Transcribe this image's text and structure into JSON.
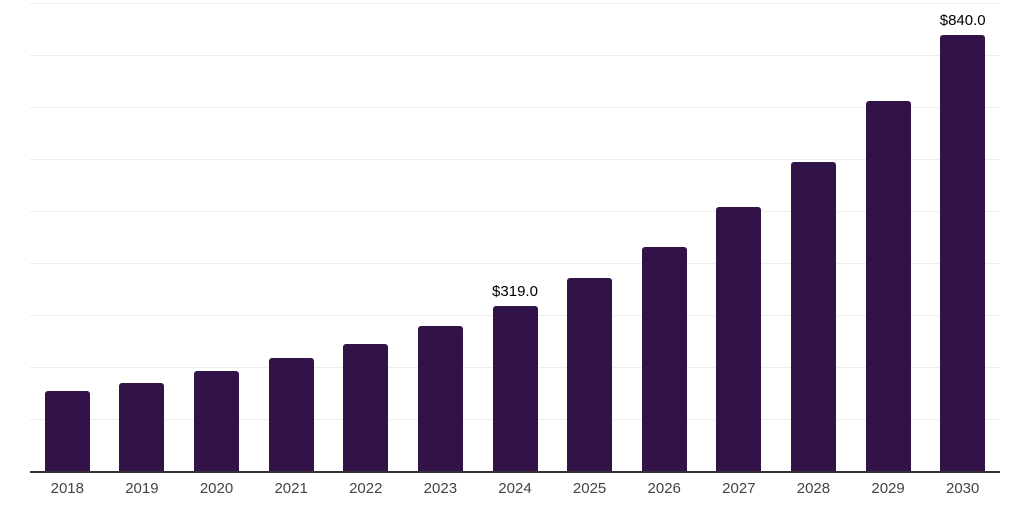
{
  "chart_data": {
    "type": "bar",
    "title": "",
    "xlabel": "",
    "ylabel": "",
    "categories": [
      "2018",
      "2019",
      "2020",
      "2021",
      "2022",
      "2023",
      "2024",
      "2025",
      "2026",
      "2027",
      "2028",
      "2029",
      "2030"
    ],
    "values": [
      155,
      171,
      194,
      219,
      247,
      280,
      319,
      373,
      433,
      509,
      597,
      713,
      840
    ],
    "bar_value_labels": [
      "",
      "",
      "",
      "",
      "",
      "",
      "$319.0",
      "",
      "",
      "",
      "",
      "",
      "$840.0"
    ],
    "ylim": [
      0,
      908
    ],
    "grid_step": 100,
    "grid_on": true,
    "legend_position": "none",
    "colors": {
      "bar": "#311348",
      "gridline": "#ededed",
      "axis_line": "#333333",
      "tick_label": "#444444",
      "value_label": "#000000",
      "background": "#ffffff"
    }
  }
}
